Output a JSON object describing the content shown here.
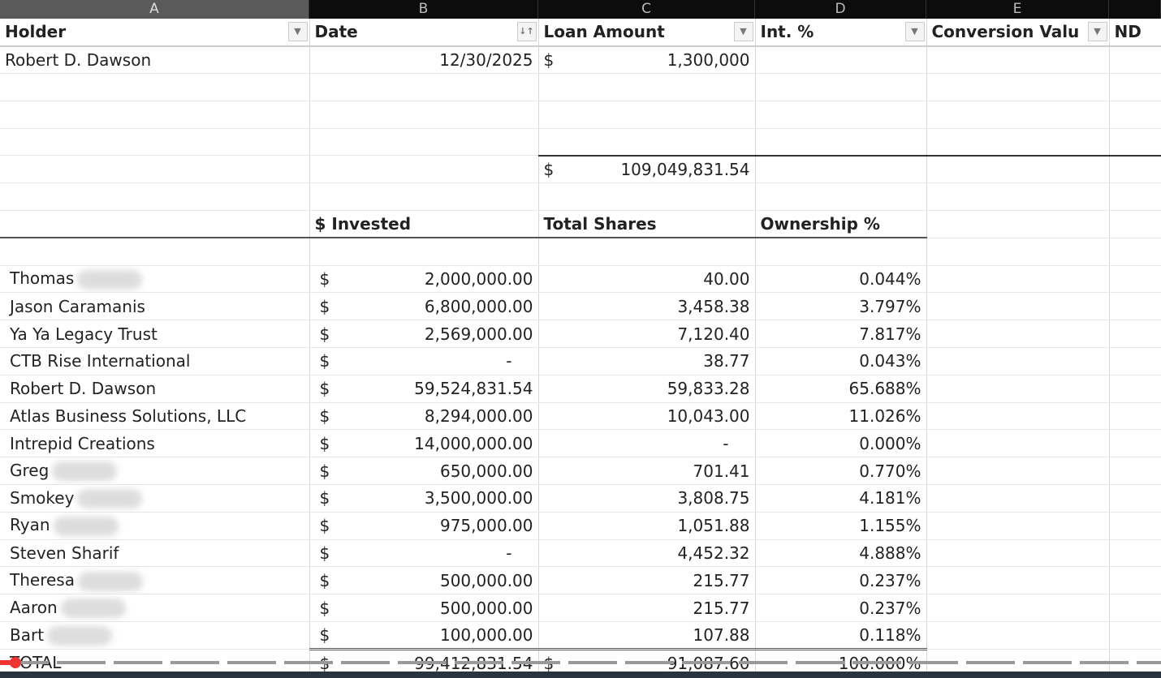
{
  "columns": [
    "A",
    "B",
    "C",
    "D",
    "E"
  ],
  "header": {
    "holder": "Holder",
    "date": "Date",
    "loan": "Loan Amount",
    "int": "Int. %",
    "conv": "Conversion Valu",
    "nd": "ND"
  },
  "loan_row": {
    "holder": "Robert D. Dawson",
    "date": "12/30/2025",
    "currency": "$",
    "amount": "1,300,000"
  },
  "sum_row": {
    "currency": "$",
    "amount": "109,049,831.54"
  },
  "section_header": {
    "invested": "$ Invested",
    "shares": "Total Shares",
    "ownership": "Ownership %"
  },
  "holders": [
    {
      "name": "Thomas",
      "redacted": true,
      "cur": "$",
      "invested": "2,000,000.00",
      "shares": "40.00",
      "pct": "0.044%"
    },
    {
      "name": "Jason Caramanis",
      "redacted": false,
      "cur": "$",
      "invested": "6,800,000.00",
      "shares": "3,458.38",
      "pct": "3.797%"
    },
    {
      "name": "Ya Ya Legacy Trust",
      "redacted": false,
      "cur": "$",
      "invested": "2,569,000.00",
      "shares": "7,120.40",
      "pct": "7.817%"
    },
    {
      "name": "CTB Rise International",
      "redacted": false,
      "cur": "$",
      "invested": "-",
      "shares": "38.77",
      "pct": "0.043%"
    },
    {
      "name": "Robert D. Dawson",
      "redacted": false,
      "cur": "$",
      "invested": "59,524,831.54",
      "shares": "59,833.28",
      "pct": "65.688%"
    },
    {
      "name": "Atlas Business Solutions, LLC",
      "redacted": false,
      "cur": "$",
      "invested": "8,294,000.00",
      "shares": "10,043.00",
      "pct": "11.026%"
    },
    {
      "name": "Intrepid Creations",
      "redacted": false,
      "cur": "$",
      "invested": "14,000,000.00",
      "shares": "-",
      "pct": "0.000%"
    },
    {
      "name": "Greg",
      "redacted": true,
      "cur": "$",
      "invested": "650,000.00",
      "shares": "701.41",
      "pct": "0.770%"
    },
    {
      "name": "Smokey",
      "redacted": true,
      "cur": "$",
      "invested": "3,500,000.00",
      "shares": "3,808.75",
      "pct": "4.181%"
    },
    {
      "name": "Ryan",
      "redacted": true,
      "cur": "$",
      "invested": "975,000.00",
      "shares": "1,051.88",
      "pct": "1.155%"
    },
    {
      "name": "Steven Sharif",
      "redacted": false,
      "cur": "$",
      "invested": "-",
      "shares": "4,452.32",
      "pct": "4.888%"
    },
    {
      "name": "Theresa",
      "redacted": true,
      "cur": "$",
      "invested": "500,000.00",
      "shares": "215.77",
      "pct": "0.237%"
    },
    {
      "name": "Aaron",
      "redacted": true,
      "cur": "$",
      "invested": "500,000.00",
      "shares": "215.77",
      "pct": "0.237%"
    },
    {
      "name": "Bart",
      "redacted": true,
      "cur": "$",
      "invested": "100,000.00",
      "shares": "107.88",
      "pct": "0.118%"
    }
  ],
  "total": {
    "label": "TOTAL",
    "cur": "$",
    "invested": "99,412,831.54",
    "cur2": "$",
    "shares": "91,087.60",
    "pct": "100.000%"
  },
  "video_progress_percent": 1
}
